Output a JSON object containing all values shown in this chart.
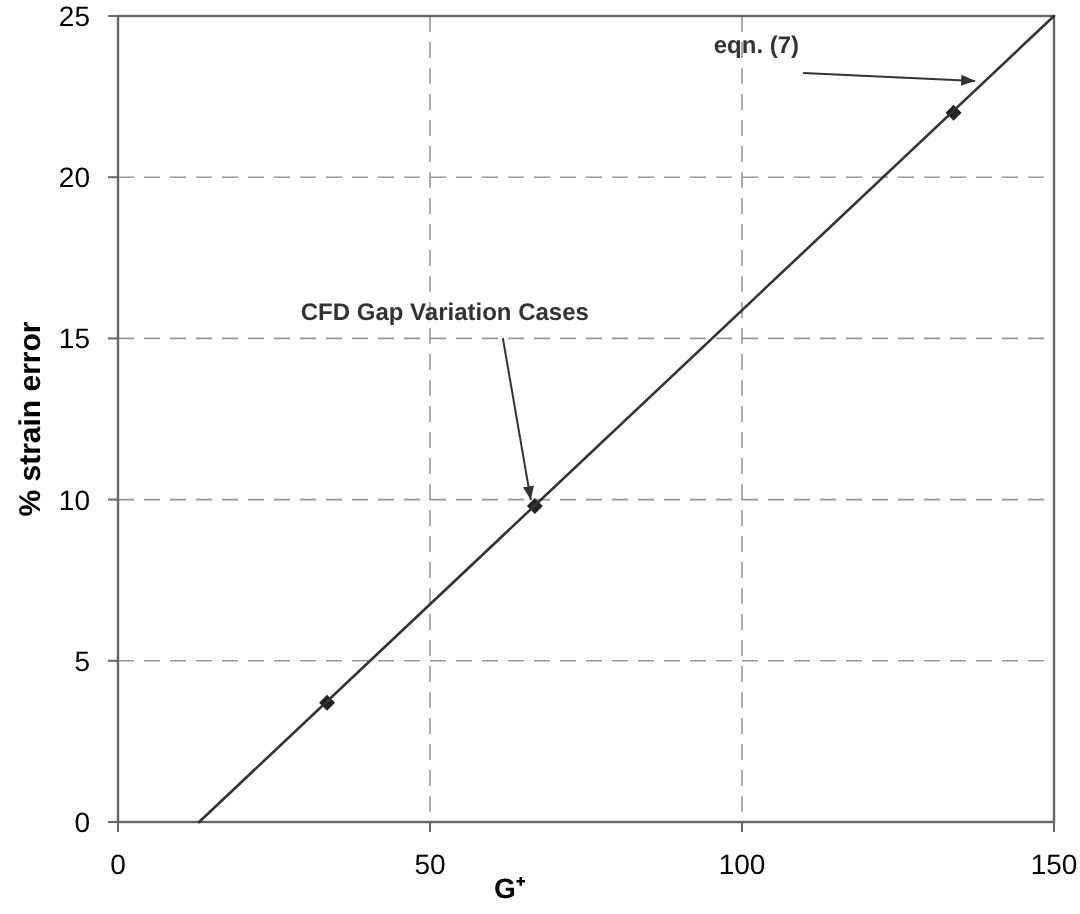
{
  "chart_data": {
    "type": "scatter",
    "xlabel": "G⁺",
    "ylabel": "% strain error",
    "xlim": [
      0,
      150
    ],
    "ylim": [
      0,
      25
    ],
    "xticks": [
      0,
      50,
      100,
      150
    ],
    "yticks": [
      0,
      5,
      10,
      15,
      20,
      25
    ],
    "grid": true,
    "marker": "diamond",
    "series": [
      {
        "color": "#222222",
        "x": [
          33.5,
          66.8,
          133.9
        ],
        "values": [
          3.7,
          9.8,
          22.0
        ]
      },
      {
        "type": "line",
        "color": "#333333",
        "marker": "none",
        "line_style": "solid",
        "x": [
          13,
          150
        ],
        "values": [
          0,
          25
        ]
      }
    ],
    "annotations": [
      {
        "text": "CFD Gap Variation Cases",
        "x": 66.8,
        "y": 9.8
      },
      {
        "text": "eqn. (7)",
        "x": 138,
        "y": 22.8
      }
    ]
  }
}
